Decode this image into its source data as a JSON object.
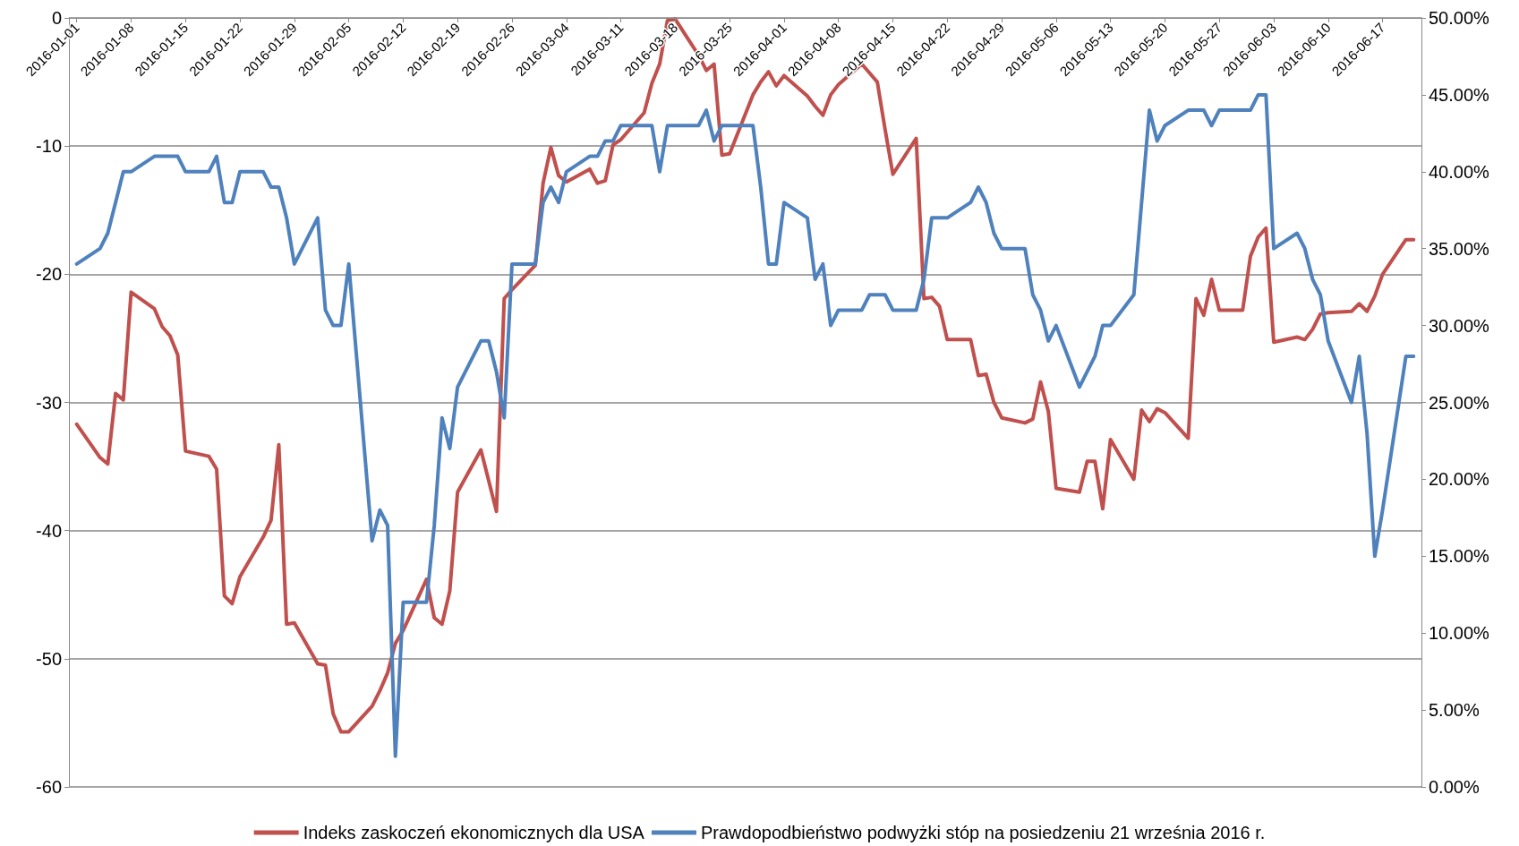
{
  "chart_data": {
    "type": "line",
    "marker": "none",
    "line_style": "solid",
    "grid": "y",
    "legend": "bottom",
    "xlim": [
      "2015-12-31",
      "2016-06-22"
    ],
    "xticks": [
      "2016-01-01",
      "2016-01-08",
      "2016-01-15",
      "2016-01-22",
      "2016-01-29",
      "2016-02-05",
      "2016-02-12",
      "2016-02-19",
      "2016-02-26",
      "2016-03-04",
      "2016-03-11",
      "2016-03-18",
      "2016-03-25",
      "2016-04-01",
      "2016-04-08",
      "2016-04-15",
      "2016-04-22",
      "2016-04-29",
      "2016-05-06",
      "2016-05-13",
      "2016-05-20",
      "2016-05-27",
      "2016-06-03",
      "2016-06-10",
      "2016-06-17"
    ],
    "x": [
      "2016-01-01",
      "2016-01-04",
      "2016-01-05",
      "2016-01-06",
      "2016-01-07",
      "2016-01-08",
      "2016-01-11",
      "2016-01-12",
      "2016-01-13",
      "2016-01-14",
      "2016-01-15",
      "2016-01-18",
      "2016-01-19",
      "2016-01-20",
      "2016-01-21",
      "2016-01-22",
      "2016-01-25",
      "2016-01-26",
      "2016-01-27",
      "2016-01-28",
      "2016-01-29",
      "2016-02-01",
      "2016-02-02",
      "2016-02-03",
      "2016-02-04",
      "2016-02-05",
      "2016-02-08",
      "2016-02-09",
      "2016-02-10",
      "2016-02-11",
      "2016-02-12",
      "2016-02-15",
      "2016-02-16",
      "2016-02-17",
      "2016-02-18",
      "2016-02-19",
      "2016-02-22",
      "2016-02-23",
      "2016-02-24",
      "2016-02-25",
      "2016-02-26",
      "2016-02-29",
      "2016-03-01",
      "2016-03-02",
      "2016-03-03",
      "2016-03-04",
      "2016-03-07",
      "2016-03-08",
      "2016-03-09",
      "2016-03-10",
      "2016-03-11",
      "2016-03-14",
      "2016-03-15",
      "2016-03-16",
      "2016-03-17",
      "2016-03-18",
      "2016-03-21",
      "2016-03-22",
      "2016-03-23",
      "2016-03-24",
      "2016-03-25",
      "2016-03-28",
      "2016-03-29",
      "2016-03-30",
      "2016-03-31",
      "2016-04-01",
      "2016-04-04",
      "2016-04-05",
      "2016-04-06",
      "2016-04-07",
      "2016-04-08",
      "2016-04-11",
      "2016-04-12",
      "2016-04-13",
      "2016-04-14",
      "2016-04-15",
      "2016-04-18",
      "2016-04-19",
      "2016-04-20",
      "2016-04-21",
      "2016-04-22",
      "2016-04-25",
      "2016-04-26",
      "2016-04-27",
      "2016-04-28",
      "2016-04-29",
      "2016-05-02",
      "2016-05-03",
      "2016-05-04",
      "2016-05-05",
      "2016-05-06",
      "2016-05-09",
      "2016-05-10",
      "2016-05-11",
      "2016-05-12",
      "2016-05-13",
      "2016-05-16",
      "2016-05-17",
      "2016-05-18",
      "2016-05-19",
      "2016-05-20",
      "2016-05-23",
      "2016-05-24",
      "2016-05-25",
      "2016-05-26",
      "2016-05-27",
      "2016-05-30",
      "2016-05-31",
      "2016-06-01",
      "2016-06-02",
      "2016-06-03",
      "2016-06-06",
      "2016-06-07",
      "2016-06-08",
      "2016-06-09",
      "2016-06-10",
      "2016-06-13",
      "2016-06-14",
      "2016-06-15",
      "2016-06-16",
      "2016-06-17",
      "2016-06-20",
      "2016-06-21"
    ],
    "ylim": [
      -60,
      0
    ],
    "yticks": [
      -60,
      -50,
      -40,
      -30,
      -20,
      -10,
      0
    ],
    "y2lim": [
      0,
      50
    ],
    "y2ticks": [
      {
        "value": 0,
        "label": "0.00%"
      },
      {
        "value": 5,
        "label": "5.00%"
      },
      {
        "value": 10,
        "label": "10.00%"
      },
      {
        "value": 15,
        "label": "15.00%"
      },
      {
        "value": 20,
        "label": "20.00%"
      },
      {
        "value": 25,
        "label": "25.00%"
      },
      {
        "value": 30,
        "label": "30.00%"
      },
      {
        "value": 35,
        "label": "35.00%"
      },
      {
        "value": 40,
        "label": "40.00%"
      },
      {
        "value": 45,
        "label": "45.00%"
      },
      {
        "value": 50,
        "label": "50.00%"
      }
    ],
    "series": [
      {
        "name": "Indeks zaskoczeń ekonomicznych dla USA",
        "color": "#c0504d",
        "values": [
          -31.7,
          -34.3,
          -34.8,
          -29.3,
          -29.8,
          -21.4,
          -22.7,
          -24.1,
          -24.8,
          -26.3,
          -33.8,
          -34.2,
          -35.2,
          -45.1,
          -45.7,
          -43.6,
          -40.5,
          -39.2,
          -33.3,
          -47.3,
          -47.2,
          -50.4,
          -50.5,
          -54.3,
          -55.7,
          -55.7,
          -53.7,
          -52.5,
          -51.1,
          -48.8,
          -47.8,
          -43.8,
          -46.8,
          -47.3,
          -44.7,
          -37.0,
          -33.7,
          -36.1,
          -38.5,
          -21.9,
          -21.2,
          -19.3,
          -12.9,
          -10.1,
          -12.3,
          -12.8,
          -11.8,
          -12.9,
          -12.7,
          -9.9,
          -9.5,
          -7.4,
          -5.1,
          -3.6,
          -0.2,
          -0.1,
          -2.9,
          -4.1,
          -3.6,
          -10.7,
          -10.6,
          -6.0,
          -5.0,
          -4.2,
          -5.3,
          -4.5,
          -6.1,
          -6.9,
          -7.6,
          -6.0,
          -5.2,
          -3.6,
          -4.3,
          -5.0,
          -8.7,
          -12.2,
          -9.4,
          -21.9,
          -21.8,
          -22.5,
          -25.1,
          -25.1,
          -27.9,
          -27.8,
          -30.0,
          -31.2,
          -31.6,
          -31.3,
          -28.4,
          -30.7,
          -36.7,
          -37.0,
          -34.6,
          -34.6,
          -38.3,
          -32.9,
          -36.0,
          -30.6,
          -31.5,
          -30.5,
          -30.8,
          -32.8,
          -21.9,
          -23.2,
          -20.4,
          -22.8,
          -22.8,
          -18.6,
          -17.1,
          -16.4,
          -25.3,
          -24.9,
          -25.1,
          -24.3,
          -23.1,
          -23.0,
          -22.9,
          -22.3,
          -22.9,
          -21.7,
          -20.0,
          -17.3,
          -17.3
        ]
      },
      {
        "name": "Prawdopodbieństwo podwyżki stóp na posiedzeniu 21 września 2016 r.",
        "color": "#4f81bd",
        "axis": "y2",
        "values": [
          34,
          35,
          36,
          38,
          40,
          40,
          41,
          41,
          41,
          41,
          40,
          40,
          41,
          38,
          38,
          40,
          40,
          39,
          39,
          37,
          34,
          37,
          31,
          30,
          30,
          34,
          16,
          18,
          17,
          2,
          12,
          12,
          17,
          24,
          22,
          26,
          29,
          29,
          27,
          24,
          34,
          34,
          38,
          39,
          38,
          40,
          41,
          41,
          42,
          42,
          43,
          43,
          43,
          40,
          43,
          43,
          43,
          44,
          42,
          43,
          43,
          43,
          39,
          34,
          34,
          38,
          37,
          33,
          34,
          30,
          31,
          31,
          32,
          32,
          32,
          31,
          31,
          33,
          37,
          37,
          37,
          38,
          39,
          38,
          36,
          35,
          35,
          32,
          31,
          29,
          30,
          26,
          27,
          28,
          30,
          30,
          32,
          38,
          44,
          42,
          43,
          44,
          44,
          44,
          43,
          44,
          44,
          44,
          45,
          45,
          35,
          36,
          35,
          33,
          32,
          29,
          25,
          28,
          23,
          15,
          18,
          28,
          28
        ]
      }
    ]
  }
}
